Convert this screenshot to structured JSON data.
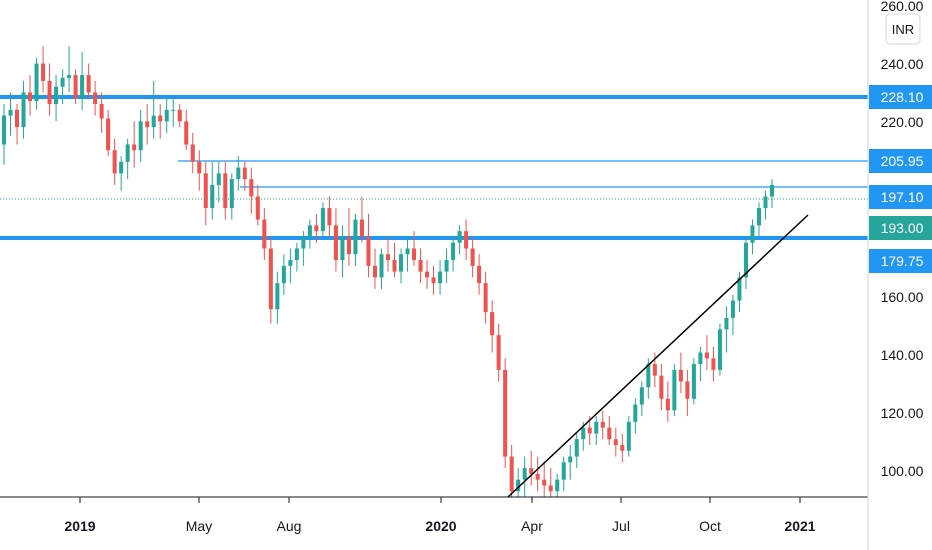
{
  "chart_data": {
    "type": "candlestick",
    "currency": "INR",
    "y_axis": {
      "range": [
        90,
        262
      ],
      "ticks": [
        "260.00",
        "240.00",
        "220.00",
        "160.00",
        "140.00",
        "120.00",
        "100.00"
      ]
    },
    "x_axis": {
      "ticks": [
        {
          "label": "2019",
          "bold": true
        },
        {
          "label": "May",
          "bold": false
        },
        {
          "label": "Aug",
          "bold": false
        },
        {
          "label": "2020",
          "bold": true
        },
        {
          "label": "Apr",
          "bold": false
        },
        {
          "label": "Jul",
          "bold": false
        },
        {
          "label": "Oct",
          "bold": false
        },
        {
          "label": "2021",
          "bold": true
        }
      ]
    },
    "horizontal_levels": [
      {
        "label": "228.10",
        "value": 228.1,
        "weight": "thick",
        "color": "#2196f3"
      },
      {
        "label": "205.95",
        "value": 205.95,
        "weight": "thin",
        "color": "#2196f3"
      },
      {
        "label": "197.10",
        "value": 197.1,
        "weight": "thin",
        "color": "#2196f3"
      },
      {
        "label": "193.00",
        "value": 193.0,
        "weight": "marker",
        "color": "#26a69a"
      },
      {
        "label": "179.75",
        "value": 179.75,
        "weight": "thick",
        "color": "#2196f3"
      }
    ],
    "trendline": {
      "from": [
        0.38,
        90
      ],
      "to": [
        0.92,
        188
      ],
      "color": "#000000"
    },
    "colors": {
      "up": "#26a69a",
      "down": "#ef5350",
      "level": "#2196f3"
    },
    "candles": [
      [
        212,
        226,
        205,
        222
      ],
      [
        222,
        230,
        215,
        224
      ],
      [
        224,
        226,
        212,
        218
      ],
      [
        218,
        234,
        214,
        230
      ],
      [
        230,
        236,
        222,
        227
      ],
      [
        227,
        242,
        224,
        240
      ],
      [
        240,
        246,
        230,
        234
      ],
      [
        234,
        240,
        222,
        226
      ],
      [
        226,
        236,
        220,
        232
      ],
      [
        232,
        238,
        226,
        235
      ],
      [
        235,
        246,
        230,
        236
      ],
      [
        236,
        238,
        226,
        228
      ],
      [
        228,
        244,
        224,
        236
      ],
      [
        236,
        240,
        228,
        230
      ],
      [
        230,
        234,
        222,
        226
      ],
      [
        226,
        230,
        216,
        221
      ],
      [
        221,
        224,
        208,
        210
      ],
      [
        210,
        214,
        198,
        202
      ],
      [
        202,
        208,
        196,
        206
      ],
      [
        206,
        214,
        200,
        212
      ],
      [
        212,
        220,
        204,
        210
      ],
      [
        210,
        224,
        206,
        220
      ],
      [
        220,
        226,
        212,
        218
      ],
      [
        218,
        234,
        214,
        222
      ],
      [
        222,
        226,
        214,
        220
      ],
      [
        220,
        228,
        216,
        224
      ],
      [
        224,
        228,
        218,
        224
      ],
      [
        224,
        226,
        218,
        220
      ],
      [
        220,
        224,
        210,
        212
      ],
      [
        212,
        216,
        202,
        206
      ],
      [
        206,
        210,
        196,
        202
      ],
      [
        202,
        206,
        184,
        190
      ],
      [
        190,
        206,
        186,
        198
      ],
      [
        198,
        206,
        192,
        202
      ],
      [
        202,
        206,
        186,
        190
      ],
      [
        190,
        202,
        186,
        200
      ],
      [
        200,
        208,
        196,
        204
      ],
      [
        204,
        206,
        196,
        200
      ],
      [
        200,
        204,
        188,
        194
      ],
      [
        194,
        198,
        184,
        186
      ],
      [
        186,
        190,
        172,
        176
      ],
      [
        176,
        180,
        150,
        155
      ],
      [
        155,
        168,
        150,
        164
      ],
      [
        164,
        174,
        160,
        170
      ],
      [
        170,
        176,
        164,
        172
      ],
      [
        172,
        178,
        168,
        176
      ],
      [
        176,
        182,
        170,
        180
      ],
      [
        180,
        186,
        176,
        184
      ],
      [
        184,
        188,
        178,
        182
      ],
      [
        182,
        192,
        180,
        190
      ],
      [
        190,
        194,
        180,
        184
      ],
      [
        184,
        190,
        168,
        172
      ],
      [
        172,
        184,
        166,
        180
      ],
      [
        180,
        190,
        170,
        174
      ],
      [
        174,
        188,
        170,
        186
      ],
      [
        186,
        194,
        178,
        180
      ],
      [
        180,
        188,
        166,
        170
      ],
      [
        170,
        176,
        162,
        166
      ],
      [
        166,
        176,
        162,
        174
      ],
      [
        174,
        180,
        168,
        172
      ],
      [
        172,
        178,
        166,
        168
      ],
      [
        168,
        176,
        164,
        174
      ],
      [
        174,
        180,
        168,
        176
      ],
      [
        176,
        182,
        170,
        172
      ],
      [
        172,
        176,
        164,
        168
      ],
      [
        168,
        172,
        162,
        166
      ],
      [
        166,
        170,
        160,
        164
      ],
      [
        164,
        172,
        160,
        168
      ],
      [
        168,
        176,
        164,
        172
      ],
      [
        172,
        180,
        168,
        178
      ],
      [
        178,
        184,
        174,
        182
      ],
      [
        182,
        186,
        172,
        176
      ],
      [
        176,
        180,
        166,
        170
      ],
      [
        170,
        174,
        160,
        164
      ],
      [
        164,
        168,
        150,
        154
      ],
      [
        154,
        158,
        140,
        146
      ],
      [
        146,
        150,
        130,
        134
      ],
      [
        134,
        138,
        100,
        104
      ],
      [
        104,
        108,
        88,
        92
      ],
      [
        92,
        100,
        86,
        96
      ],
      [
        96,
        104,
        90,
        100
      ],
      [
        100,
        106,
        94,
        98
      ],
      [
        98,
        104,
        92,
        96
      ],
      [
        96,
        102,
        90,
        94
      ],
      [
        94,
        100,
        88,
        92
      ],
      [
        92,
        98,
        86,
        96
      ],
      [
        96,
        104,
        92,
        102
      ],
      [
        102,
        108,
        96,
        104
      ],
      [
        104,
        112,
        100,
        110
      ],
      [
        110,
        116,
        106,
        114
      ],
      [
        114,
        118,
        108,
        112
      ],
      [
        112,
        118,
        108,
        116
      ],
      [
        116,
        120,
        110,
        114
      ],
      [
        114,
        118,
        108,
        110
      ],
      [
        110,
        114,
        104,
        108
      ],
      [
        108,
        112,
        102,
        106
      ],
      [
        106,
        118,
        104,
        116
      ],
      [
        116,
        124,
        112,
        122
      ],
      [
        122,
        130,
        118,
        128
      ],
      [
        128,
        138,
        124,
        136
      ],
      [
        136,
        140,
        128,
        132
      ],
      [
        132,
        136,
        120,
        124
      ],
      [
        124,
        130,
        116,
        120
      ],
      [
        120,
        136,
        118,
        134
      ],
      [
        134,
        140,
        126,
        130
      ],
      [
        130,
        134,
        118,
        124
      ],
      [
        124,
        138,
        122,
        136
      ],
      [
        136,
        142,
        130,
        140
      ],
      [
        140,
        146,
        134,
        138
      ],
      [
        138,
        142,
        130,
        134
      ],
      [
        134,
        150,
        132,
        148
      ],
      [
        148,
        156,
        140,
        152
      ],
      [
        152,
        160,
        146,
        158
      ],
      [
        158,
        168,
        154,
        166
      ],
      [
        166,
        180,
        162,
        178
      ],
      [
        178,
        186,
        174,
        184
      ],
      [
        184,
        192,
        180,
        190
      ],
      [
        190,
        196,
        186,
        194
      ],
      [
        194,
        200,
        190,
        198
      ]
    ]
  }
}
